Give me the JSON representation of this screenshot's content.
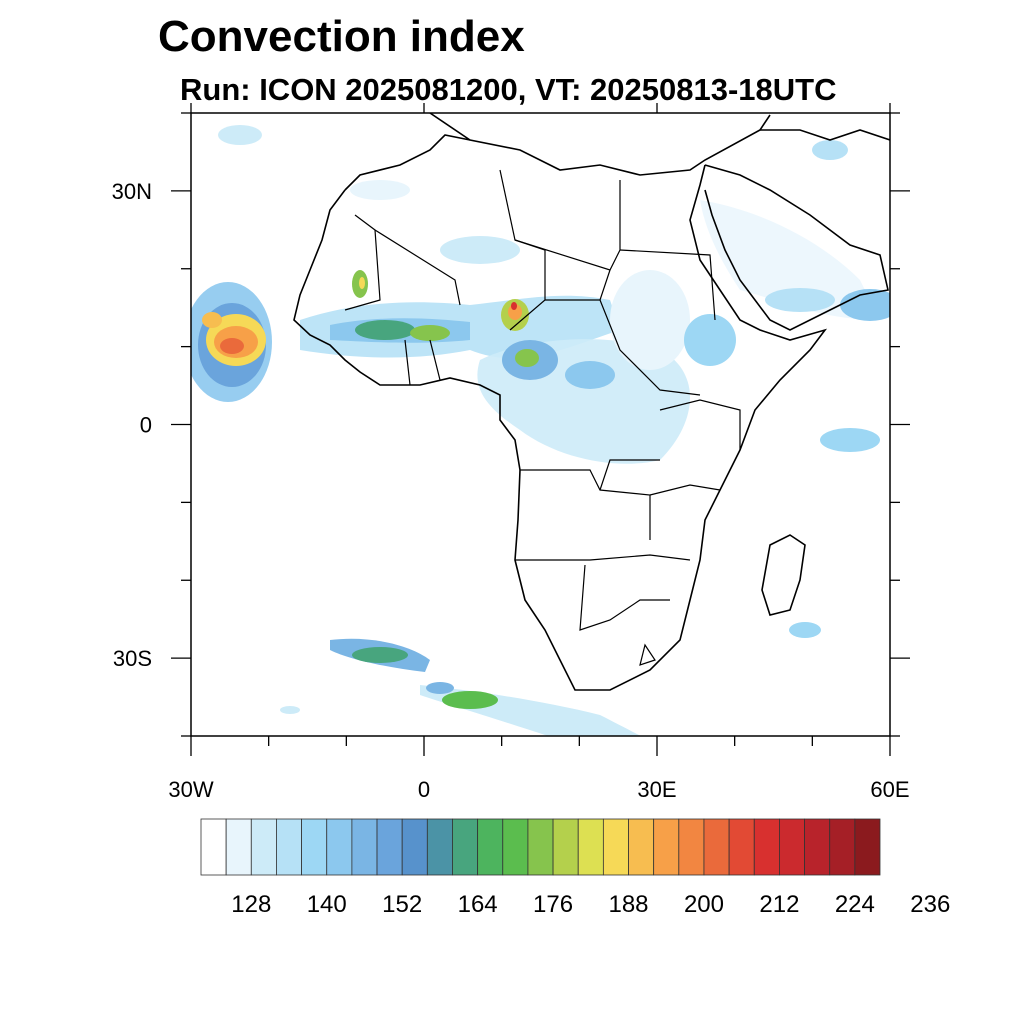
{
  "title": "Convection index",
  "subtitle": "Run: ICON 2025081200,  VT: 20250813-18UTC",
  "map": {
    "lon_range": [
      -30,
      60
    ],
    "lat_range": [
      -40,
      40
    ],
    "lat_labels": [
      {
        "lat": 30,
        "text": "30N"
      },
      {
        "lat": 0,
        "text": "0"
      },
      {
        "lat": -30,
        "text": "30S"
      }
    ],
    "lon_labels": [
      {
        "lon": -30,
        "text": "30W"
      },
      {
        "lon": 0,
        "text": "0"
      },
      {
        "lon": 30,
        "text": "30E"
      },
      {
        "lon": 60,
        "text": "60E"
      }
    ]
  },
  "colorbar": {
    "colors": [
      "#ffffff",
      "#e8f5fc",
      "#cdebf8",
      "#b6e1f6",
      "#9dd7f4",
      "#8cc8ee",
      "#7ab5e4",
      "#6aa4dc",
      "#5792cc",
      "#4b93a6",
      "#48a57e",
      "#4db45e",
      "#5bbd4e",
      "#86c44d",
      "#b4d04c",
      "#dde052",
      "#f6d957",
      "#f7bd50",
      "#f7a048",
      "#f28641",
      "#ea6a3b",
      "#e24a34",
      "#d8302f",
      "#cb2a2e",
      "#b8232b",
      "#a51f26",
      "#8b1a1e"
    ],
    "labels": [
      "128",
      "140",
      "152",
      "164",
      "176",
      "188",
      "200",
      "212",
      "224",
      "236"
    ]
  }
}
